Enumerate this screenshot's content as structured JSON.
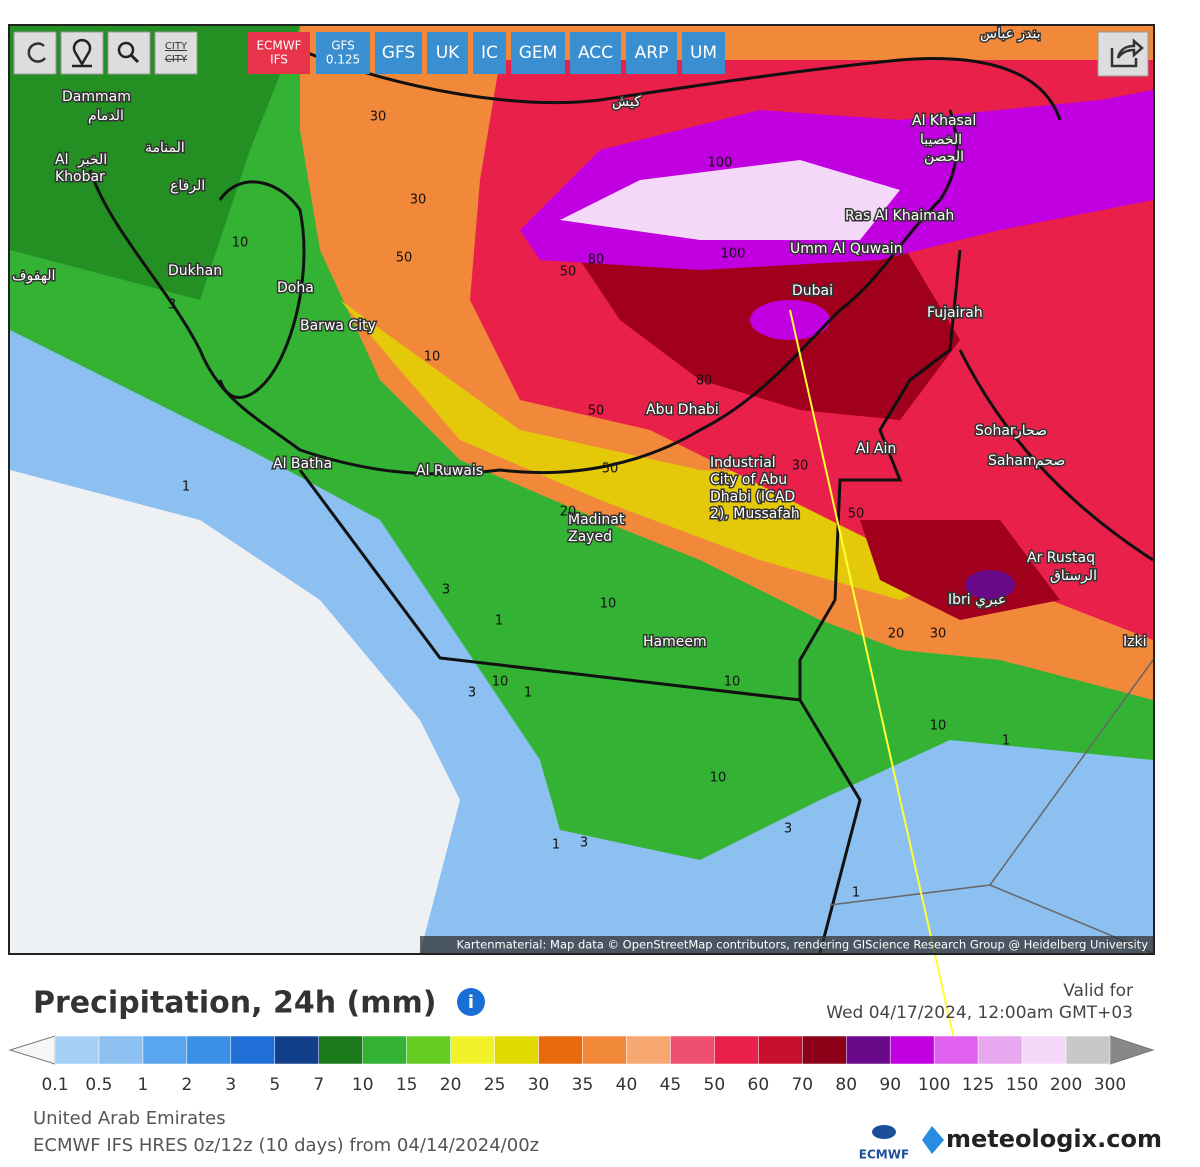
{
  "toolbar": {
    "city": "CITY"
  },
  "models": [
    [
      "ECMWF",
      "IFS"
    ],
    [
      "GFS",
      "0.125"
    ],
    [
      "GFS"
    ],
    [
      "UK"
    ],
    [
      "IC"
    ],
    [
      "GEM"
    ],
    [
      "ACC"
    ],
    [
      "ARP"
    ],
    [
      "UM"
    ]
  ],
  "map": {
    "cities": [
      [
        "Dammam"
      ],
      [
        "الدمام"
      ],
      [
        "Al",
        "Khobar"
      ],
      [
        "الخبر"
      ],
      [
        "المنامة"
      ],
      [
        "الرفاع"
      ],
      [
        "الهفوف"
      ],
      [
        "Dukhan"
      ],
      [
        "Doha"
      ],
      [
        "Barwa City"
      ],
      [
        "Al Batha"
      ],
      [
        "Al Ruwais"
      ],
      [
        "Madinat",
        "Zayed"
      ],
      [
        "Hameem"
      ],
      [
        "Abu Dhabi"
      ],
      [
        "Industrial",
        "City of Abu",
        "Dhabi (ICAD",
        "2), Mussafah"
      ],
      [
        "Dubai"
      ],
      [
        "Umm Al Quwain"
      ],
      [
        "Ras Al Khaimah"
      ],
      [
        "Al Khasal"
      ],
      [
        "الخصيبا"
      ],
      [
        "الحصن"
      ],
      [
        "Fujairah"
      ],
      [
        "Al Ain"
      ],
      [
        "Sohar"
      ],
      [
        "صحار"
      ],
      [
        "Saham"
      ],
      [
        "صحم"
      ],
      [
        "Ar Rustaq"
      ],
      [
        "الرستاق"
      ],
      [
        "Ibri"
      ],
      [
        "عبري"
      ],
      [
        "Izki"
      ],
      [
        "بندر عباس"
      ],
      [
        "كيش"
      ]
    ],
    "contour_labels": [
      30,
      30,
      50,
      50,
      100,
      100,
      80,
      10,
      3,
      10,
      80,
      50,
      1,
      50,
      30,
      50,
      20,
      10,
      3,
      1,
      3,
      10,
      1,
      10,
      20,
      30,
      10,
      10,
      3,
      1,
      3,
      1,
      1
    ],
    "attribution": "Kartenmaterial: Map data © OpenStreetMap contributors, rendering GIScience Research Group @ Heidelberg University"
  },
  "legend": {
    "title": "Precipitation, 24h (mm)",
    "valid_label": "Valid for",
    "valid_time": "Wed 04/17/2024, 12:00am GMT+03",
    "ticks": [
      0.1,
      0.5,
      1,
      2,
      3,
      5,
      7,
      10,
      15,
      20,
      25,
      30,
      35,
      40,
      45,
      50,
      60,
      70,
      80,
      90,
      100,
      125,
      150,
      200,
      300
    ],
    "colors": [
      "#a6d0f5",
      "#8cc0f0",
      "#5aa6ee",
      "#3b8fe6",
      "#1f6fd6",
      "#123f8a",
      "#1a7a1a",
      "#33b233",
      "#66cc22",
      "#f2f22a",
      "#e0d900",
      "#e86a0c",
      "#f2893a",
      "#f7a870",
      "#f05070",
      "#e8204a",
      "#c8102e",
      "#8c0018",
      "#6a0a8a",
      "#c000e0",
      "#e060f0",
      "#e8a8f0",
      "#f4d8f8",
      "#c8c8c8"
    ]
  },
  "footer": {
    "region": "United Arab Emirates",
    "run": "ECMWF IFS HRES 0z/12z (10 days) from 04/14/2024/00z",
    "ecmwf": "ECMWF",
    "brand": "meteologix.com"
  }
}
